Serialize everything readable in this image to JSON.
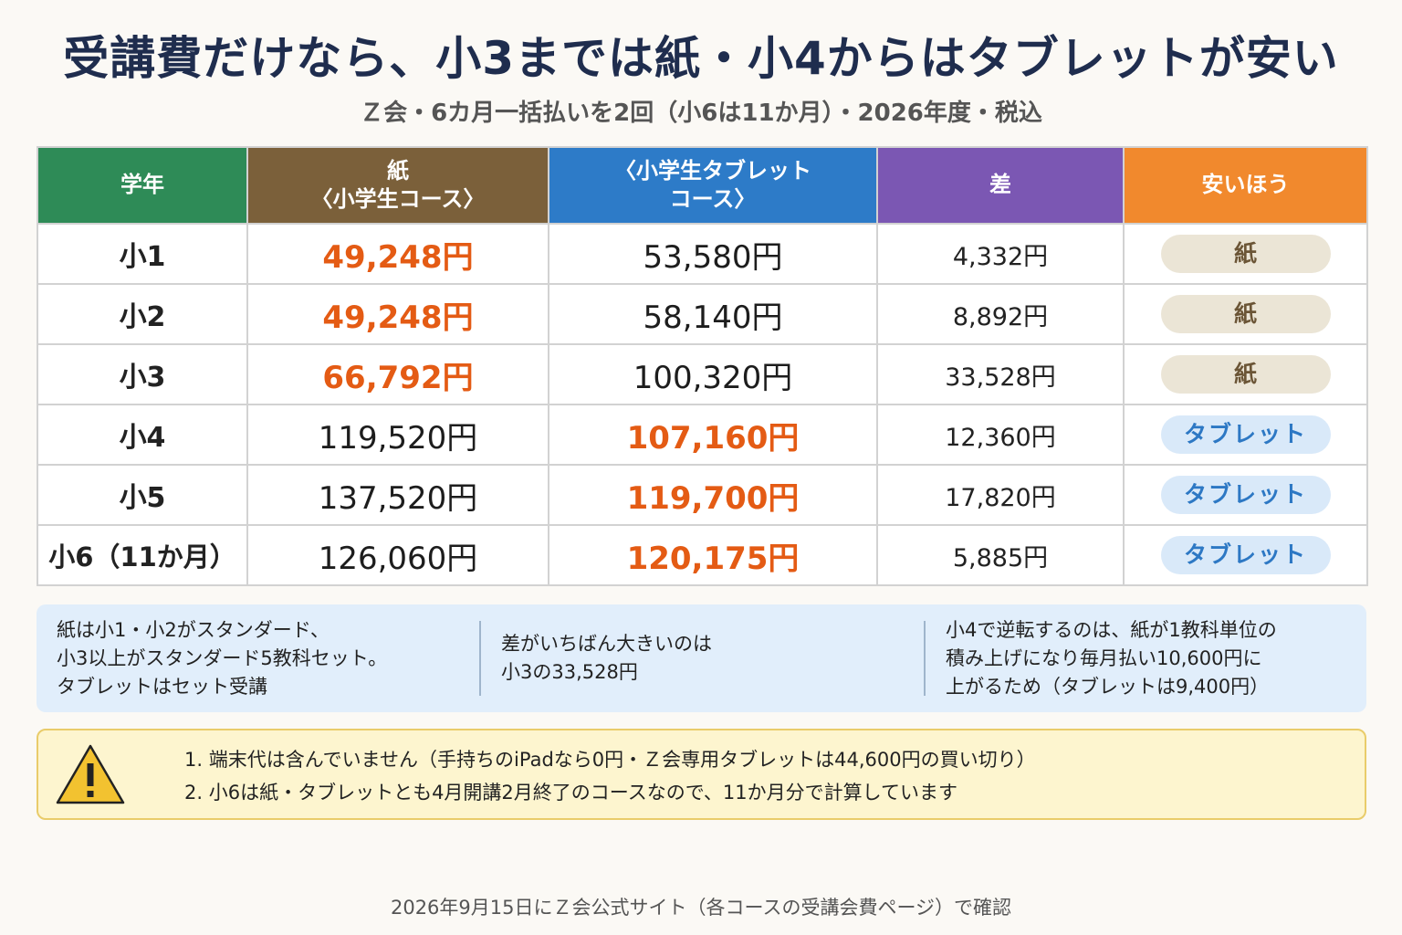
{
  "title": "受講費だけなら、小3までは紙・小4からはタブレットが安い",
  "subtitle": "Ｚ会・6カ月一括払いを2回（小6は11か月）・2026年度・税込",
  "table": {
    "headers": {
      "grade": "学年",
      "paper_line1": "紙",
      "paper_line2": "〈小学生コース〉",
      "tablet_line1": "〈小学生タブレット",
      "tablet_line2": "コース〉",
      "diff": "差",
      "cheaper": "安いほう"
    },
    "rows": [
      {
        "grade": "小1",
        "paper": "49,248円",
        "tablet": "53,580円",
        "diff": "4,332円",
        "cheaper": "紙",
        "cheaper_type": "paper"
      },
      {
        "grade": "小2",
        "paper": "49,248円",
        "tablet": "58,140円",
        "diff": "8,892円",
        "cheaper": "紙",
        "cheaper_type": "paper"
      },
      {
        "grade": "小3",
        "paper": "66,792円",
        "tablet": "100,320円",
        "diff": "33,528円",
        "cheaper": "紙",
        "cheaper_type": "paper"
      },
      {
        "grade": "小4",
        "paper": "119,520円",
        "tablet": "107,160円",
        "diff": "12,360円",
        "cheaper": "タブレット",
        "cheaper_type": "tablet"
      },
      {
        "grade": "小5",
        "paper": "137,520円",
        "tablet": "119,700円",
        "diff": "17,820円",
        "cheaper": "タブレット",
        "cheaper_type": "tablet"
      },
      {
        "grade": "小6（11か月）",
        "paper": "126,060円",
        "tablet": "120,175円",
        "diff": "5,885円",
        "cheaper": "タブレット",
        "cheaper_type": "tablet"
      }
    ]
  },
  "notes": {
    "note1": [
      "紙は小1・小2がスタンダード、",
      "小3以上がスタンダード5教科セット。",
      "タブレットはセット受講"
    ],
    "note2": [
      "差がいちばん大きいのは",
      "小3の33,528円"
    ],
    "note3": [
      "小4で逆転するのは、紙が1教科単位の",
      "積み上げになり毎月払い10,600円に",
      "上がるため（タブレットは9,400円）"
    ]
  },
  "warning": {
    "items": [
      "1. 端末代は含んでいません（手持ちのiPadなら0円・Ｚ会専用タブレットは44,600円の買い切り）",
      "2. 小6は紙・タブレットとも4月開講2月終了のコースなので、11か月分で計算しています"
    ]
  },
  "footer": "2026年9月15日にＺ会公式サイト（各コースの受講会費ページ）で確認",
  "colors": {
    "grade_header": "#2e8b57",
    "paper_header": "#7b603a",
    "tablet_header": "#2d7bc8",
    "diff_header": "#7b57b3",
    "cheaper_header": "#f1892d",
    "cheap_price": "#e45b14"
  },
  "icons": {
    "warning": "warning-triangle-icon"
  }
}
